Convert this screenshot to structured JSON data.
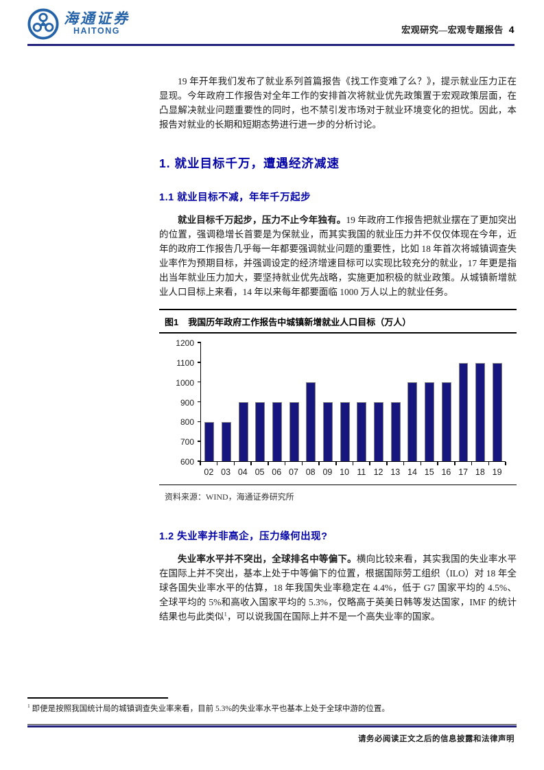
{
  "header": {
    "logo_chinese": "海通证券",
    "logo_english": "HAITONG",
    "category": "宏观研究—宏观专题报告",
    "page_number": "4"
  },
  "intro_paragraph": "19 年开年我们发布了就业系列首篇报告《找工作变难了么？》，提示就业压力正在显现。今年政府工作报告对全年工作的安排首次将就业优先政策置于宏观政策层面，在凸显解决就业问题重要性的同时，也不禁引发市场对于就业环境变化的担忧。因此，本报告对就业的长期和短期态势进行进一步的分析讨论。",
  "section1": {
    "title": "1. 就业目标千万，遭遇经济减速",
    "sub1": {
      "title": "1.1 就业目标不减，年年千万起步",
      "lead": "就业目标千万起步，压力不止今年独有。",
      "body": "19 年政府工作报告把就业摆在了更加突出的位置，强调稳增长首要是为保就业，而其实我国的就业压力并不仅仅体现在今年，近年的政府工作报告几乎每一年都要强调就业问题的重要性，比如 18 年首次将城镇调查失业率作为预期目标，并强调设定的经济增速目标可以实现比较充分的就业，17 年更是指出当年就业压力加大，要坚持就业优先战略，实施更加积极的就业政策。从城镇新增就业人口目标上来看，14 年以来每年都要面临 1000 万人以上的就业任务。"
    },
    "sub2": {
      "title": "1.2 失业率并非高企，压力缘何出现?",
      "lead": "失业率水平并不突出，全球排名中等偏下。",
      "body_before_ref": "横向比较来看，其实我国的失业率水平在国际上并不突出，基本上处于中等偏下的位置，根据国际劳工组织（ILO）对 18 年全球各国失业率水平的估算，18 年我国失业率稳定在 4.4%，低于 G7 国家平均的 4.5%、全球平均的 5%和高收入国家平均的 5.3%，仅略高于英美日韩等发达国家，IMF 的统计结果也与此类似",
      "footnote_ref": "1",
      "body_after_ref": "，可以说我国在国际上并不是一个高失业率的国家。"
    }
  },
  "figure": {
    "label": "图1",
    "title": "我国历年政府工作报告中城镇新增就业人口目标（万人）",
    "source": "资料来源：WIND，海通证券研究所"
  },
  "chart_data": {
    "type": "bar",
    "categories": [
      "02",
      "03",
      "04",
      "05",
      "06",
      "07",
      "08",
      "09",
      "10",
      "11",
      "12",
      "13",
      "14",
      "15",
      "16",
      "17",
      "18",
      "19"
    ],
    "values": [
      800,
      800,
      900,
      900,
      900,
      900,
      1000,
      900,
      900,
      900,
      900,
      900,
      1000,
      1000,
      1000,
      1100,
      1100,
      1100
    ],
    "title": "我国历年政府工作报告中城镇新增就业人口目标（万人）",
    "xlabel": "",
    "ylabel": "",
    "ylim": [
      600,
      1200
    ],
    "ytick_step": 100,
    "grid": false,
    "legend": null,
    "bar_color": "#16167e"
  },
  "footnote": {
    "marker": "1",
    "text": " 即便是按照我国统计局的城镇调查失业率来看，目前 5.3%的失业率水平也基本上处于全球中游的位置。"
  },
  "footer": {
    "disclaimer": "请务必阅读正文之后的信息披露和法律声明"
  },
  "colors": {
    "brand_blue": "#2563a8",
    "rule_navy": "#1f1f7a",
    "heading_blue": "#0303a6",
    "bar_navy": "#16167e",
    "text": "#1a1a1a"
  }
}
